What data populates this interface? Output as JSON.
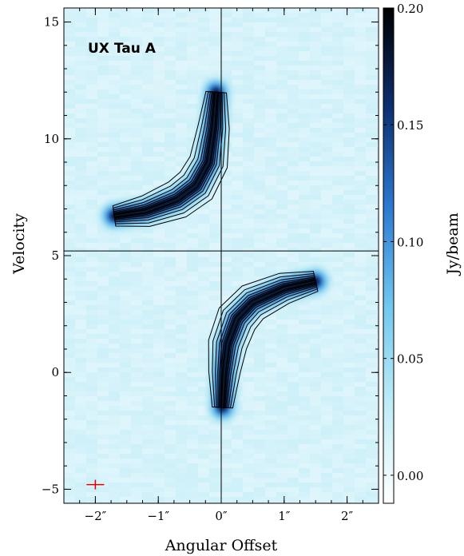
{
  "chart_data": {
    "type": "heatmap",
    "title": "",
    "annotation": "UX Tau A",
    "xlabel": "Angular Offset",
    "ylabel": "Velocity",
    "colorbar_label": "Jy/beam",
    "xlim": [
      -2.5,
      2.5
    ],
    "ylim": [
      -5.6,
      15.6
    ],
    "xticks": [
      {
        "value": -2,
        "label": "−2″"
      },
      {
        "value": -1,
        "label": "−1″"
      },
      {
        "value": 0,
        "label": "0″"
      },
      {
        "value": 1,
        "label": "1″"
      },
      {
        "value": 2,
        "label": "2″"
      }
    ],
    "yticks": [
      {
        "value": -5,
        "label": "−5"
      },
      {
        "value": 0,
        "label": "0"
      },
      {
        "value": 5,
        "label": "5"
      },
      {
        "value": 10,
        "label": "10"
      },
      {
        "value": 15,
        "label": "15"
      }
    ],
    "colorbar": {
      "range": [
        -0.012,
        0.2
      ],
      "ticks": [
        {
          "value": 0.0,
          "label": "0.00"
        },
        {
          "value": 0.05,
          "label": "0.05"
        },
        {
          "value": 0.1,
          "label": "0.10"
        },
        {
          "value": 0.15,
          "label": "0.15"
        },
        {
          "value": 0.2,
          "label": "0.20"
        }
      ],
      "colors": [
        "#ffffff",
        "#bfecf6",
        "#6fc7f0",
        "#2d78d0",
        "#0d2f70",
        "#000000"
      ]
    },
    "reference_lines": {
      "x": 0,
      "y": 5.2
    },
    "beam_marker": {
      "x": -2.0,
      "y": -4.8,
      "color": "#e00000"
    },
    "emission_lobes": [
      {
        "name": "upper-left lobe",
        "spine": [
          [
            -1.7,
            6.7
          ],
          [
            -1.2,
            6.9
          ],
          [
            -0.7,
            7.4
          ],
          [
            -0.4,
            8.0
          ],
          [
            -0.2,
            9.0
          ],
          [
            -0.12,
            10.5
          ],
          [
            -0.08,
            12.0
          ]
        ],
        "peak": 0.2
      },
      {
        "name": "lower-right lobe",
        "spine": [
          [
            1.5,
            3.9
          ],
          [
            1.0,
            3.6
          ],
          [
            0.5,
            3.0
          ],
          [
            0.25,
            2.3
          ],
          [
            0.1,
            1.2
          ],
          [
            0.05,
            0.0
          ],
          [
            0.02,
            -1.5
          ]
        ],
        "peak": 0.2
      }
    ]
  }
}
